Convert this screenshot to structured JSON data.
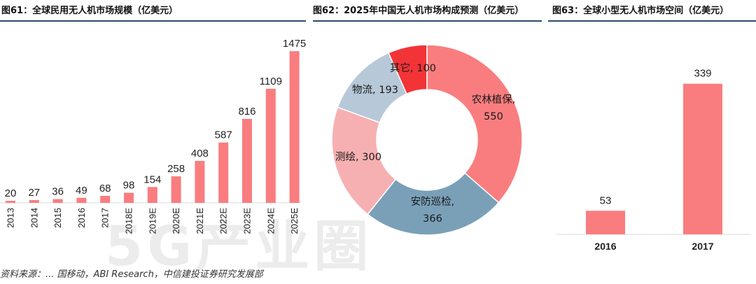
{
  "titles": {
    "fig61": "图61：全球民用无人机市场规模（亿美元）",
    "fig62": "图62：2025年中国无人机市场构成预测（亿美元）",
    "fig63": "图63：全球小型无人机市场空间（亿美元）"
  },
  "source_text": "资料来源：... 国移动，ABI Research，中信建投证券研究发展部",
  "watermark_text": "5G产业圈",
  "colors": {
    "bar": "#f97d7f",
    "rule": "#2f4a6d"
  },
  "chart_data": [
    {
      "type": "bar",
      "title": "全球民用无人机市场规模（亿美元）",
      "categories": [
        "2013",
        "2014",
        "2015",
        "2016",
        "2017",
        "2018E",
        "2019E",
        "2020E",
        "2021E",
        "2022E",
        "2023E",
        "2024E",
        "2025E"
      ],
      "values": [
        20,
        27,
        36,
        49,
        68,
        98,
        154,
        258,
        408,
        587,
        816,
        1109,
        1475
      ],
      "ylim": [
        0,
        1700
      ],
      "color": "#f97d7f"
    },
    {
      "type": "pie",
      "title": "2025年中国无人机市场构成预测（亿美元）",
      "slices": [
        {
          "label": "农林植保",
          "value": 550,
          "color": "#f97d7f"
        },
        {
          "label": "安防巡检",
          "value": 366,
          "color": "#7aa0b8"
        },
        {
          "label": "测绘",
          "value": 300,
          "color": "#f7b0b2"
        },
        {
          "label": "物流",
          "value": 193,
          "color": "#b7c9d8"
        },
        {
          "label": "其它",
          "value": 100,
          "color": "#f23437"
        }
      ]
    },
    {
      "type": "bar",
      "title": "全球小型无人机市场空间（亿美元）",
      "categories": [
        "2016",
        "2017"
      ],
      "values": [
        53,
        339
      ],
      "ylim": [
        0,
        400
      ],
      "color": "#f97d7f"
    }
  ]
}
